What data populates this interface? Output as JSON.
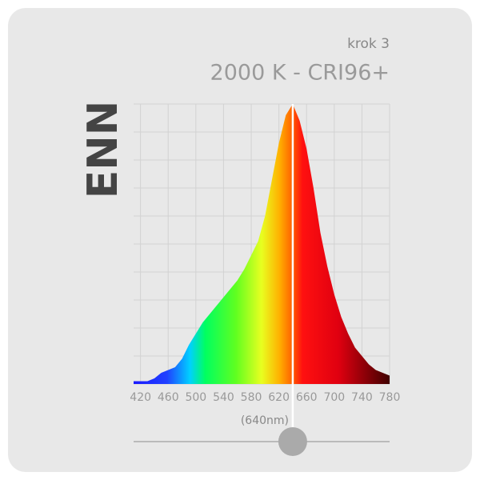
{
  "chart_data": {
    "type": "area",
    "subtitle": "krok 3",
    "title": "2000 K - CRI96+",
    "y_label": "ENN",
    "x": [
      410,
      420,
      430,
      440,
      450,
      460,
      470,
      480,
      490,
      500,
      510,
      520,
      530,
      540,
      550,
      560,
      570,
      580,
      590,
      600,
      610,
      620,
      630,
      640,
      650,
      660,
      670,
      680,
      690,
      700,
      710,
      720,
      730,
      740,
      750,
      760,
      770,
      780
    ],
    "values": [
      1,
      1,
      1,
      2,
      4,
      5,
      6,
      9,
      14,
      18,
      22,
      25,
      28,
      31,
      34,
      37,
      41,
      46,
      51,
      60,
      73,
      86,
      96,
      100,
      94,
      84,
      70,
      54,
      42,
      32,
      24,
      18,
      13,
      10,
      7,
      5,
      4,
      3
    ],
    "xlim": [
      410,
      780
    ],
    "xticks": [
      420,
      460,
      500,
      540,
      580,
      620,
      660,
      700,
      740,
      780
    ],
    "ylim": [
      0,
      100
    ],
    "yticks": [
      0,
      10,
      20,
      30,
      40,
      50,
      60,
      70,
      80,
      90,
      100
    ],
    "grid": true,
    "marker": {
      "value": 640,
      "label": "(640nm)"
    }
  }
}
